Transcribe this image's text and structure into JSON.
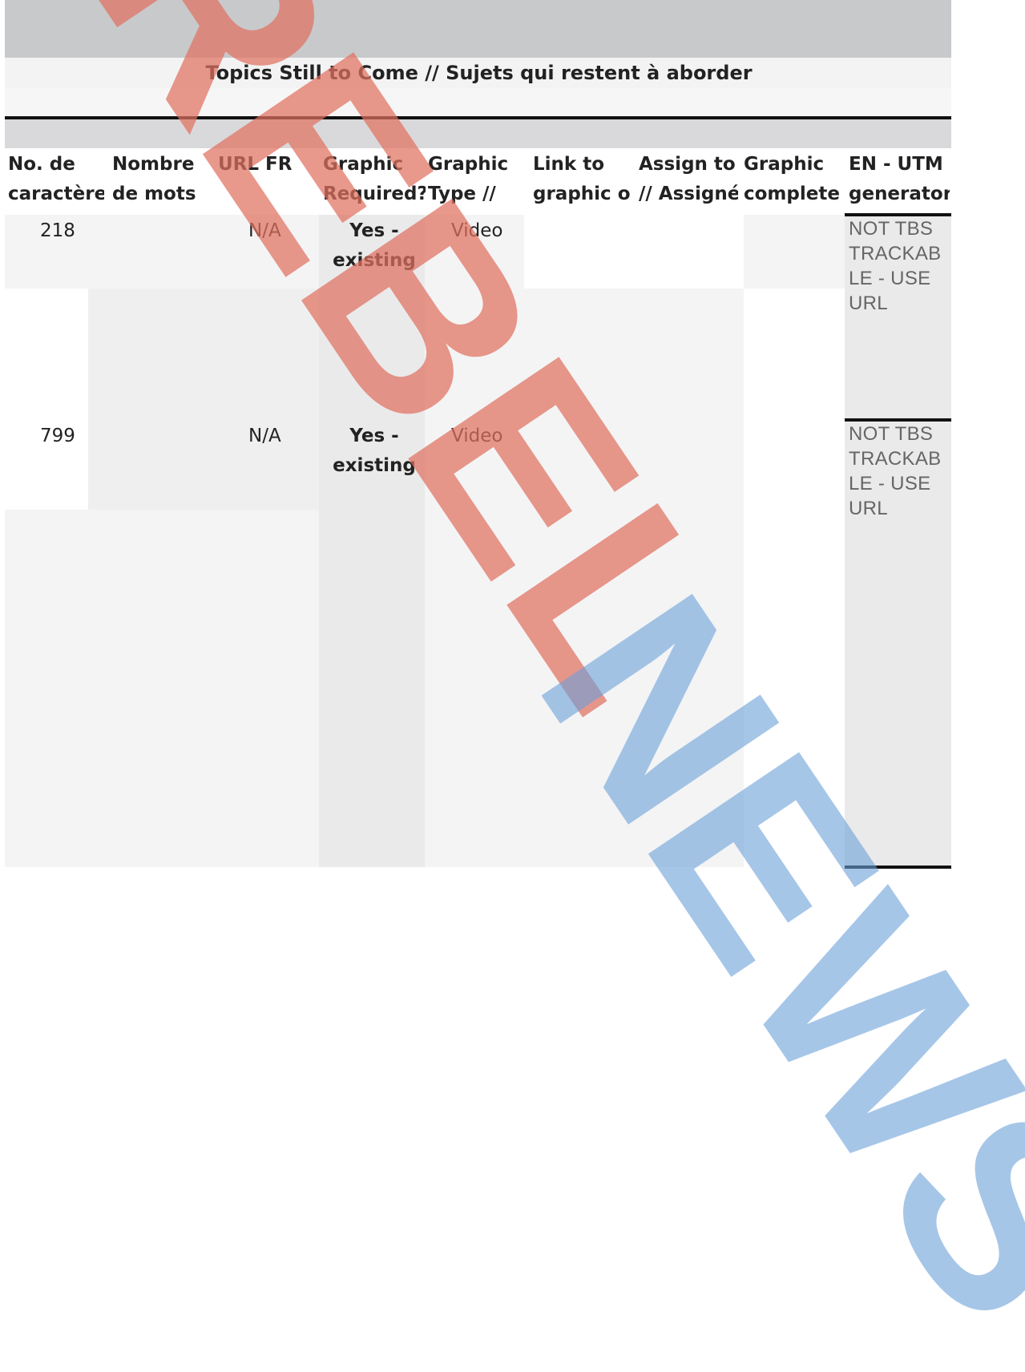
{
  "section_title": "Topics Still to Come // Sujets qui restent à aborder",
  "columns": [
    {
      "line1": "No. de",
      "line2": "caractères"
    },
    {
      "line1": "Nombre",
      "line2": "de mots"
    },
    {
      "line1": "URL FR",
      "line2": ""
    },
    {
      "line1": "Graphic",
      "line2": "Required?"
    },
    {
      "line1": "Graphic",
      "line2": "Type //"
    },
    {
      "line1": "Link to",
      "line2": "graphic or"
    },
    {
      "line1": "Assign to",
      "line2": "// Assigné"
    },
    {
      "line1": "Graphic",
      "line2": "complete"
    },
    {
      "line1": "EN - UTM",
      "line2": "generator"
    }
  ],
  "rows": [
    {
      "characters": "218",
      "url_fr": "N/A",
      "graphic_required_1": "Yes -",
      "graphic_required_2": "existing",
      "graphic_type": "Video",
      "utm": [
        "NOT TBS",
        "TRACKAB",
        "LE - USE",
        "URL"
      ]
    },
    {
      "characters": "799",
      "url_fr": "N/A",
      "graphic_required_1": "Yes -",
      "graphic_required_2": "existing",
      "graphic_type": "Video",
      "utm": [
        "NOT TBS",
        "TRACKAB",
        "LE - USE",
        "URL"
      ]
    }
  ],
  "watermark": {
    "red_text": "REBEL",
    "blue_text": "NEWS",
    "red_color": "#e07060",
    "blue_color": "#6aa0d8"
  }
}
